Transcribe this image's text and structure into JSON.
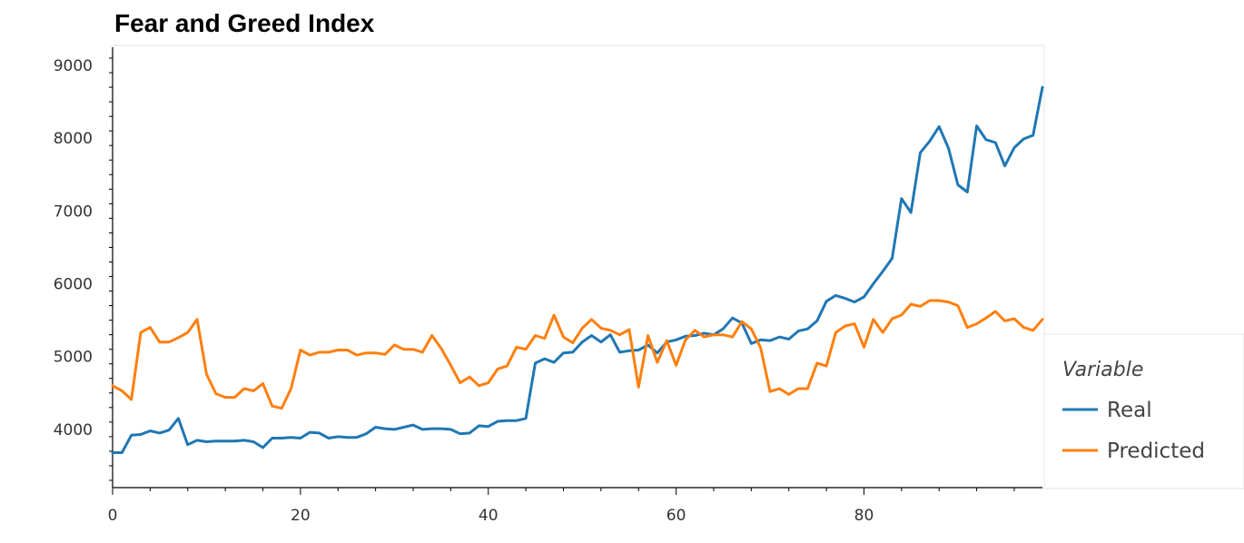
{
  "chart_data": {
    "type": "line",
    "title": "Fear and Greed Index",
    "xlabel": "",
    "ylabel": "",
    "xlim": [
      0,
      99
    ],
    "ylim": [
      3200,
      9250
    ],
    "x_ticks": [
      0,
      20,
      40,
      60,
      80
    ],
    "y_ticks": [
      4000,
      5000,
      6000,
      7000,
      8000,
      9000
    ],
    "grid": false,
    "legend_position": "right",
    "legend_title": "Variable",
    "series": [
      {
        "name": "Real",
        "color": "#1f77b4",
        "x": [
          0,
          1,
          2,
          3,
          4,
          5,
          6,
          7,
          8,
          9,
          10,
          11,
          12,
          13,
          14,
          15,
          16,
          17,
          18,
          19,
          20,
          21,
          22,
          23,
          24,
          25,
          26,
          27,
          28,
          29,
          30,
          31,
          32,
          33,
          34,
          35,
          36,
          37,
          38,
          39,
          40,
          41,
          42,
          43,
          44,
          45,
          46,
          47,
          48,
          49,
          50,
          51,
          52,
          53,
          54,
          55,
          56,
          57,
          58,
          59,
          60,
          61,
          62,
          63,
          64,
          65,
          66,
          67,
          68,
          69,
          70,
          71,
          72,
          73,
          74,
          75,
          76,
          77,
          78,
          79,
          80,
          81,
          82,
          83,
          84,
          85,
          86,
          87,
          88,
          89,
          90,
          91,
          92,
          93,
          94,
          95,
          96,
          97,
          98,
          99
        ],
        "values": [
          3680,
          3680,
          3920,
          3930,
          3980,
          3950,
          3990,
          4150,
          3790,
          3850,
          3830,
          3840,
          3840,
          3840,
          3850,
          3830,
          3750,
          3880,
          3880,
          3890,
          3880,
          3960,
          3950,
          3880,
          3900,
          3890,
          3890,
          3940,
          4030,
          4010,
          4000,
          4030,
          4060,
          4000,
          4010,
          4010,
          4000,
          3940,
          3950,
          4050,
          4040,
          4110,
          4120,
          4120,
          4150,
          4910,
          4970,
          4920,
          5050,
          5060,
          5200,
          5290,
          5200,
          5300,
          5060,
          5080,
          5090,
          5160,
          5050,
          5200,
          5230,
          5280,
          5290,
          5320,
          5300,
          5380,
          5530,
          5460,
          5180,
          5230,
          5220,
          5270,
          5240,
          5350,
          5380,
          5490,
          5760,
          5840,
          5800,
          5750,
          5820,
          6000,
          6170,
          6350,
          7170,
          6980,
          7800,
          7960,
          8160,
          7860,
          7360,
          7260,
          8170,
          7980,
          7940,
          7620,
          7870,
          7990,
          8040,
          8700
        ]
      },
      {
        "name": "Predicted",
        "color": "#ff7f0e",
        "x": [
          0,
          1,
          2,
          3,
          4,
          5,
          6,
          7,
          8,
          9,
          10,
          11,
          12,
          13,
          14,
          15,
          16,
          17,
          18,
          19,
          20,
          21,
          22,
          23,
          24,
          25,
          26,
          27,
          28,
          29,
          30,
          31,
          32,
          33,
          34,
          35,
          36,
          37,
          38,
          39,
          40,
          41,
          42,
          43,
          44,
          45,
          46,
          47,
          48,
          49,
          50,
          51,
          52,
          53,
          54,
          55,
          56,
          57,
          58,
          59,
          60,
          61,
          62,
          63,
          64,
          65,
          66,
          67,
          68,
          69,
          70,
          71,
          72,
          73,
          74,
          75,
          76,
          77,
          78,
          79,
          80,
          81,
          82,
          83,
          84,
          85,
          86,
          87,
          88,
          89,
          90,
          91,
          92,
          93,
          94,
          95,
          96,
          97,
          98,
          99
        ],
        "values": [
          4600,
          4530,
          4410,
          5330,
          5400,
          5200,
          5200,
          5260,
          5330,
          5510,
          4760,
          4490,
          4440,
          4440,
          4560,
          4530,
          4630,
          4320,
          4290,
          4560,
          5090,
          5020,
          5060,
          5060,
          5090,
          5090,
          5020,
          5050,
          5050,
          5030,
          5160,
          5100,
          5100,
          5060,
          5290,
          5110,
          4880,
          4640,
          4720,
          4600,
          4640,
          4830,
          4870,
          5130,
          5100,
          5290,
          5250,
          5570,
          5270,
          5190,
          5390,
          5510,
          5390,
          5360,
          5300,
          5370,
          4580,
          5290,
          4920,
          5220,
          4880,
          5230,
          5360,
          5270,
          5300,
          5300,
          5270,
          5480,
          5380,
          5120,
          4520,
          4560,
          4480,
          4560,
          4560,
          4910,
          4870,
          5330,
          5420,
          5450,
          5130,
          5510,
          5330,
          5520,
          5570,
          5720,
          5690,
          5770,
          5770,
          5750,
          5700,
          5400,
          5450,
          5530,
          5620,
          5490,
          5520,
          5400,
          5360,
          5510
        ]
      }
    ]
  }
}
